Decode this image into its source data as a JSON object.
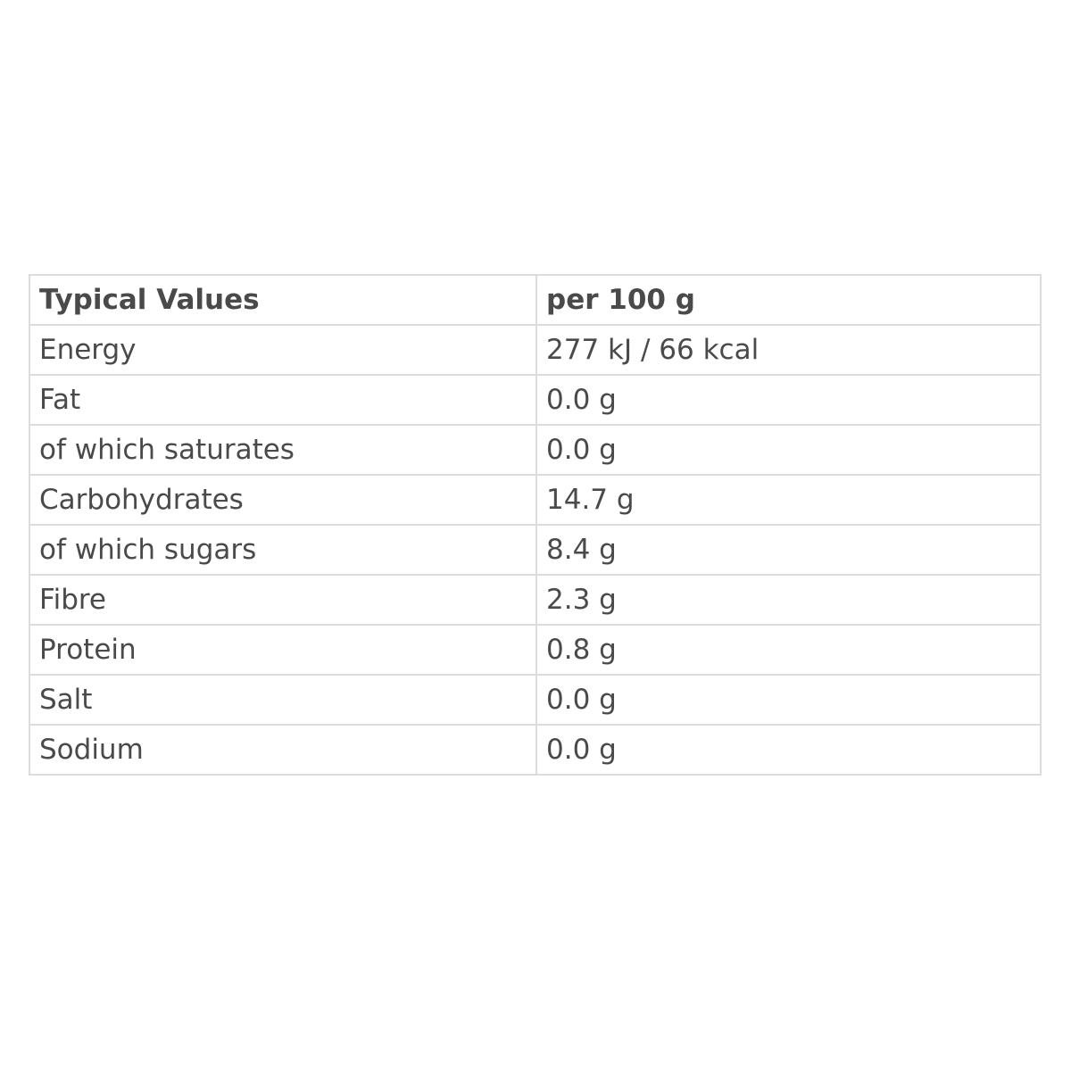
{
  "table": {
    "header": [
      "Typical Values",
      "per 100 g"
    ],
    "rows": [
      [
        "Energy",
        "277 kJ / 66 kcal"
      ],
      [
        "Fat",
        "0.0 g"
      ],
      [
        "of which saturates",
        "0.0 g"
      ],
      [
        "Carbohydrates",
        "14.7 g"
      ],
      [
        "of which sugars",
        "8.4 g"
      ],
      [
        "Fibre",
        "2.3 g"
      ],
      [
        "Protein",
        "0.8 g"
      ],
      [
        "Salt",
        "0.0 g"
      ],
      [
        "Sodium",
        "0.0 g"
      ]
    ]
  }
}
